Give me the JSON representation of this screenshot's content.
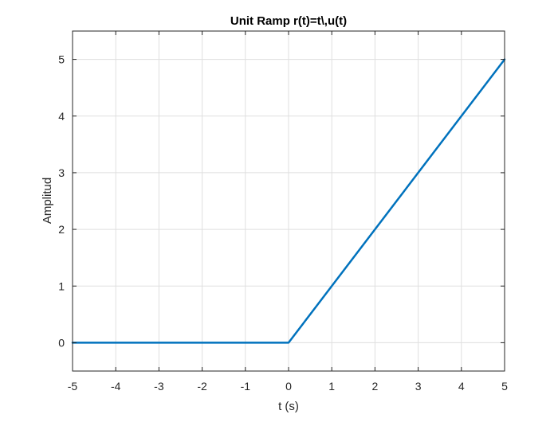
{
  "chart_data": {
    "type": "line",
    "title": "Unit Ramp r(t)=t\\,u(t)",
    "xlabel": "t (s)",
    "ylabel": "Amplitud",
    "xlim": [
      -5,
      5
    ],
    "ylim": [
      -0.5,
      5.5
    ],
    "xticks": [
      -5,
      -4,
      -3,
      -2,
      -1,
      0,
      1,
      2,
      3,
      4,
      5
    ],
    "yticks": [
      0,
      1,
      2,
      3,
      4,
      5
    ],
    "grid": true,
    "legend": "none",
    "series": [
      {
        "color": "#0072BD",
        "x": [
          -5,
          0,
          5
        ],
        "y": [
          0,
          0,
          5
        ]
      }
    ]
  }
}
